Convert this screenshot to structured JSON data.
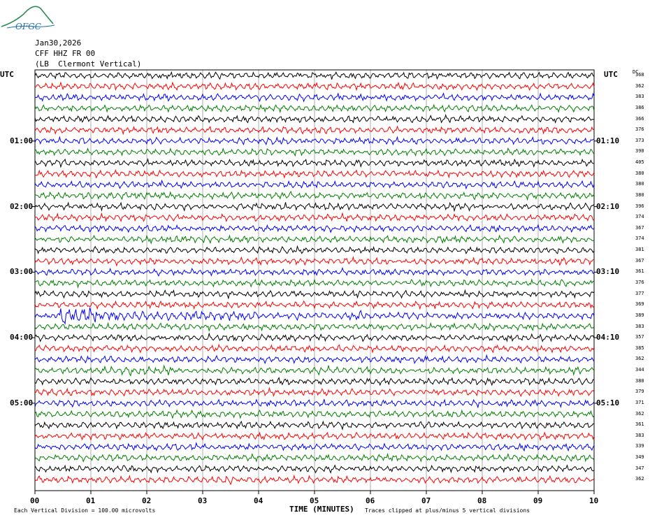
{
  "logo": {
    "text": "OFGC",
    "icon": "ofgc-logo-icon"
  },
  "header": {
    "date": "Jan30,2026",
    "station": "CFF HHZ FR 00",
    "location": "(LB  Clermont Vertical)"
  },
  "utc_left": "UTC",
  "utc_right": "UTC",
  "dc_header": "DC",
  "left_time_labels": [
    "01:00",
    "02:00",
    "03:00",
    "04:00",
    "05:00"
  ],
  "right_time_labels": [
    "01:10",
    "02:10",
    "03:10",
    "04:10",
    "05:10"
  ],
  "dc_values": [
    "368",
    "362",
    "383",
    "386",
    "366",
    "376",
    "373",
    "390",
    "405",
    "380",
    "380",
    "380",
    "396",
    "374",
    "367",
    "374",
    "381",
    "367",
    "361",
    "376",
    "377",
    "369",
    "389",
    "383",
    "357",
    "385",
    "362",
    "344",
    "380",
    "379",
    "371",
    "362",
    "361",
    "383",
    "339",
    "349",
    "347",
    "362"
  ],
  "footer": {
    "left": "Each Vertical Division =  100.00 microvolts",
    "right": "Traces clipped at plus/minus 5 vertical divisions"
  },
  "chart_data": {
    "type": "line",
    "title": "",
    "xlabel": "TIME (MINUTES)",
    "x_ticks": [
      "00",
      "01",
      "02",
      "03",
      "04",
      "05",
      "06",
      "07",
      "08",
      "09",
      "10"
    ],
    "xlim": [
      0,
      10
    ],
    "trace_count": 38,
    "trace_minutes": 10,
    "trace_colors": [
      "#000000",
      "#ff0000",
      "#0000ff",
      "#007f00"
    ],
    "vertical_division_microvolts": 100.0,
    "clip_divisions": 5,
    "grid": true,
    "events": [
      {
        "trace": 22,
        "start_min": 0.4,
        "end_min": 1.1,
        "amplitude": "large"
      },
      {
        "trace": 22,
        "start_min": 1.1,
        "end_min": 4.0,
        "amplitude": "moderate"
      },
      {
        "trace": 22,
        "start_min": 5.6,
        "end_min": 6.0,
        "amplitude": "moderate"
      },
      {
        "trace": 27,
        "start_min": 1.0,
        "end_min": 2.5,
        "amplitude": "moderate"
      },
      {
        "trace": 27,
        "start_min": 5.0,
        "end_min": 5.5,
        "amplitude": "moderate"
      },
      {
        "trace": 37,
        "start_min": 3.4,
        "end_min": 3.6,
        "amplitude": "moderate"
      }
    ]
  }
}
